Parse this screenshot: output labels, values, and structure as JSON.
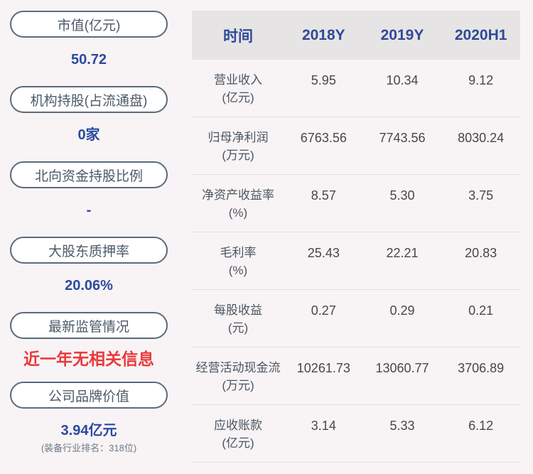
{
  "colors": {
    "page_bg": "#f8f3f4",
    "pill_border": "#5a6a7b",
    "pill_text": "#4c5a68",
    "value_blue": "#2b4aa0",
    "value_red": "#e9393c",
    "subtext_gray": "#6d7888",
    "header_bg": "#e7e4e5",
    "header_text": "#2d4b96",
    "row_label_text": "#4b5663",
    "cell_text": "#44484d",
    "divider": "#e3e0e1"
  },
  "sidebar": {
    "items": [
      {
        "label": "市值(亿元)",
        "value": "50.72",
        "color": "blue"
      },
      {
        "label": "机构持股(占流通盘)",
        "value": "0家",
        "color": "blue"
      },
      {
        "label": "北向资金持股比例",
        "value": "-",
        "color": "blue"
      },
      {
        "label": "大股东质押率",
        "value": "20.06%",
        "color": "blue"
      },
      {
        "label": "最新监管情况",
        "value": "近一年无相关信息",
        "color": "red"
      },
      {
        "label": "公司品牌价值",
        "value": "3.94亿元",
        "color": "blue",
        "subtext": "(装备行业排名：318位)"
      }
    ]
  },
  "table": {
    "header": {
      "time_label": "时间",
      "cols": [
        "2018Y",
        "2019Y",
        "2020H1"
      ]
    },
    "rows": [
      {
        "name": "营业收入",
        "unit": "(亿元)",
        "values": [
          "5.95",
          "10.34",
          "9.12"
        ]
      },
      {
        "name": "归母净利润",
        "unit": "(万元)",
        "values": [
          "6763.56",
          "7743.56",
          "8030.24"
        ]
      },
      {
        "name": "净资产收益率",
        "unit": "(%)",
        "values": [
          "8.57",
          "5.30",
          "3.75"
        ]
      },
      {
        "name": "毛利率",
        "unit": "(%)",
        "values": [
          "25.43",
          "22.21",
          "20.83"
        ]
      },
      {
        "name": "每股收益",
        "unit": "(元)",
        "values": [
          "0.27",
          "0.29",
          "0.21"
        ]
      },
      {
        "name": "经营活动现金流",
        "unit": "(万元)",
        "values": [
          "10261.73",
          "13060.77",
          "3706.89"
        ]
      },
      {
        "name": "应收账款",
        "unit": "(亿元)",
        "values": [
          "3.14",
          "5.33",
          "6.12"
        ]
      }
    ]
  }
}
